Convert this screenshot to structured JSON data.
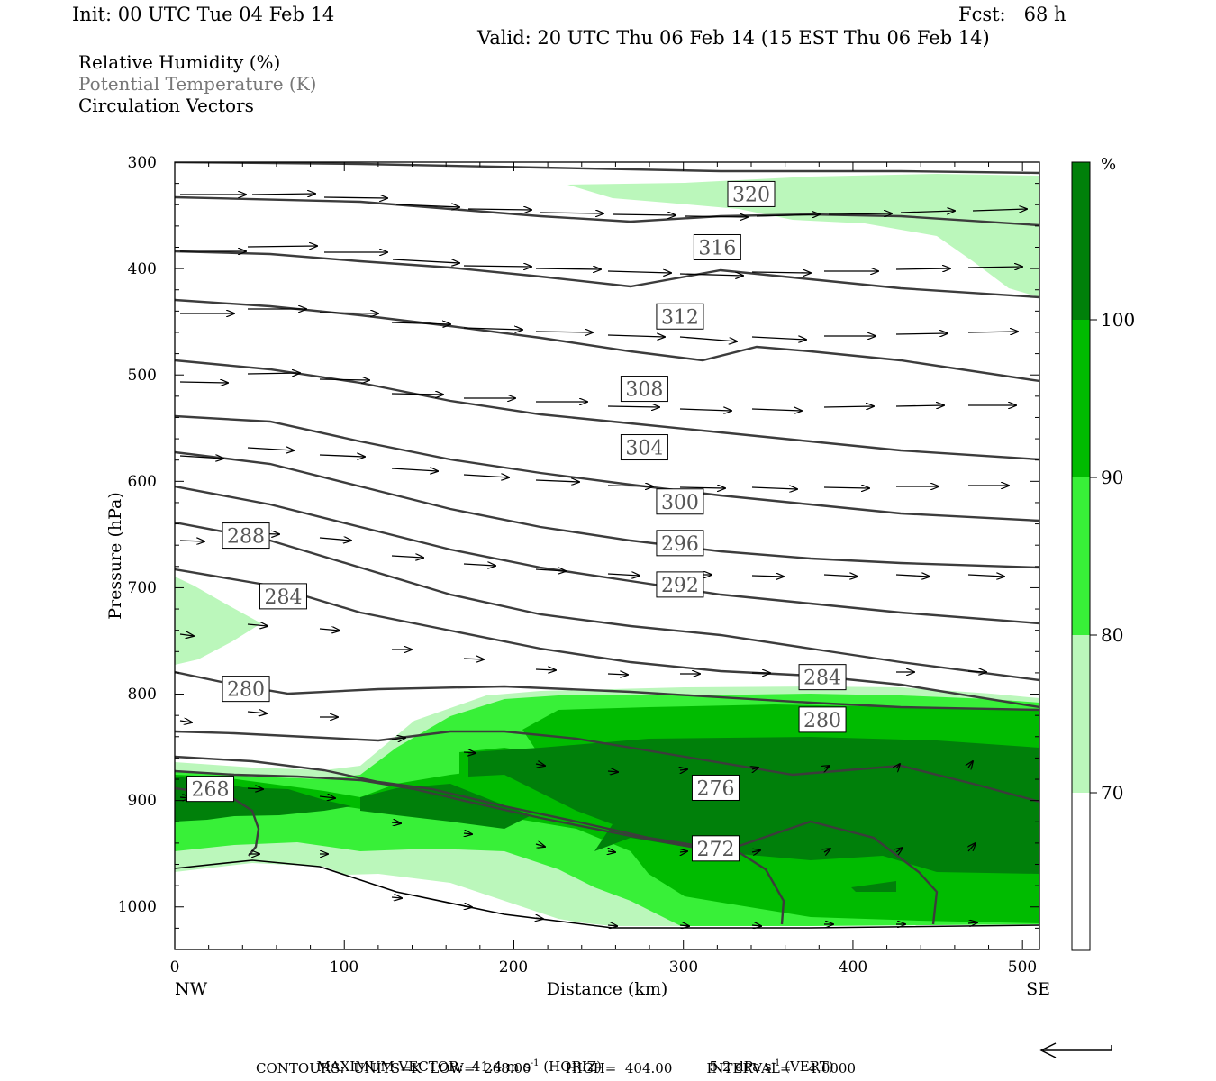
{
  "header": {
    "init": "Init: 00 UTC Tue 04 Feb 14",
    "fcst": "Fcst:   68 h",
    "valid": "Valid: 20 UTC Thu 06 Feb 14 (15 EST Thu 06 Feb 14)"
  },
  "legend": {
    "rh": "Relative Humidity (%)",
    "theta": "Potential Temperature (K)",
    "vectors": "Circulation Vectors"
  },
  "footer": {
    "max_vector_prefix": "MAXIMUM VECTOR:  41.4 m s",
    "max_vector_horiz": " (HORIZ)",
    "max_vector_vert_prefix": "5.2 dPa s",
    "max_vector_vert": " (VERT)",
    "exp": "-1",
    "contours": "CONTOURS:  UNITS=K  LOW=  268.00        HIGH=  404.00        INTERVAL=    4.0000"
  },
  "colors": {
    "rh70": "#bbf7bb",
    "rh80": "#38f038",
    "rh90": "#00bb00",
    "rh100": "#00800a",
    "contour": "#3c3c3c"
  },
  "chart_data": {
    "type": "cross-section",
    "xlabel": "Distance (km)",
    "ylabel": "Pressure (hPa)",
    "x_left_end": "NW",
    "x_right_end": "SE",
    "xlim": [
      0,
      510
    ],
    "ylim": [
      1040,
      300
    ],
    "xticks": [
      "0",
      "100",
      "200",
      "300",
      "400",
      "500"
    ],
    "yticks": [
      "300",
      "400",
      "500",
      "600",
      "700",
      "800",
      "900",
      "1000"
    ],
    "colorbar": {
      "unit": "%",
      "labels": [
        "70",
        "80",
        "90",
        "100"
      ]
    },
    "contour_labels": [
      {
        "text": "320",
        "x": 340,
        "p": 330
      },
      {
        "text": "316",
        "x": 320,
        "p": 380
      },
      {
        "text": "312",
        "x": 298,
        "p": 445
      },
      {
        "text": "308",
        "x": 277,
        "p": 513
      },
      {
        "text": "304",
        "x": 277,
        "p": 568
      },
      {
        "text": "300",
        "x": 298,
        "p": 619
      },
      {
        "text": "296",
        "x": 298,
        "p": 658
      },
      {
        "text": "292",
        "x": 298,
        "p": 697
      },
      {
        "text": "288",
        "x": 42,
        "p": 651
      },
      {
        "text": "284",
        "x": 64,
        "p": 708
      },
      {
        "text": "284",
        "x": 382,
        "p": 784
      },
      {
        "text": "280",
        "x": 42,
        "p": 795
      },
      {
        "text": "280",
        "x": 382,
        "p": 824
      },
      {
        "text": "276",
        "x": 319,
        "p": 888
      },
      {
        "text": "272",
        "x": 319,
        "p": 945
      },
      {
        "text": "268",
        "x": 21,
        "p": 889
      }
    ]
  }
}
